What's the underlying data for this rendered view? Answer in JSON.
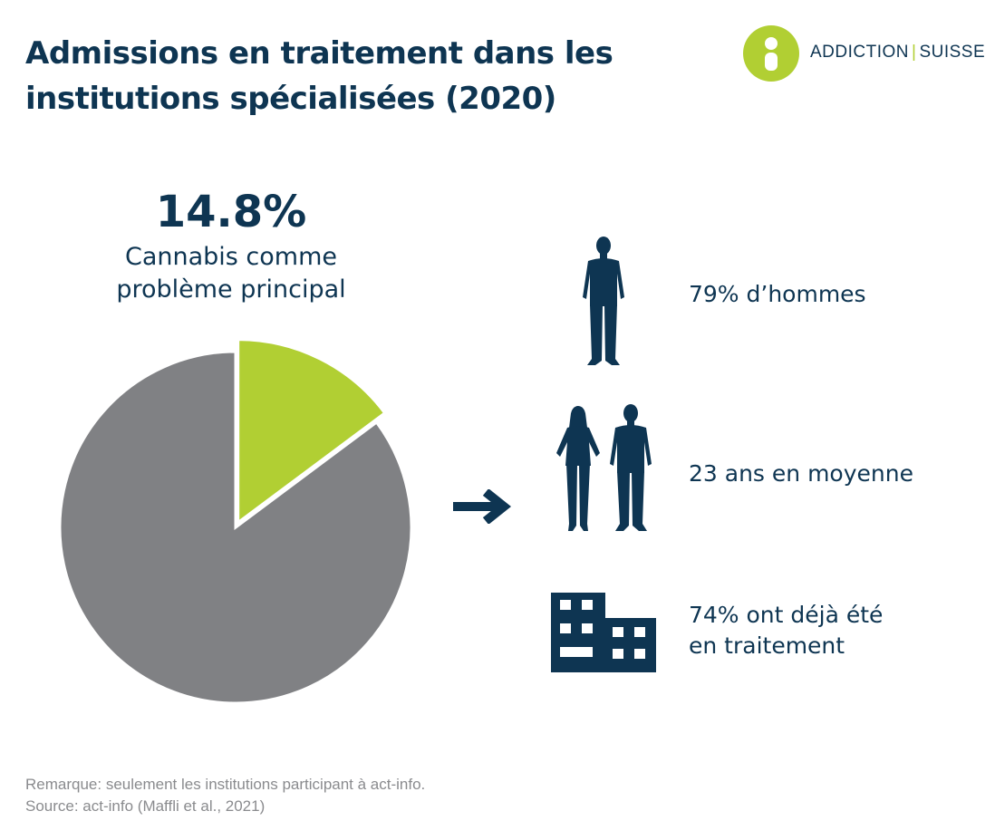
{
  "title": {
    "line1": "Admissions en traitement dans les",
    "line2": "institutions spécialisées (2020)"
  },
  "logo": {
    "word1": "ADDICTION",
    "separator": "|",
    "word2": "SUISSE",
    "icon": "addiction-suisse-logo-icon"
  },
  "highlight": {
    "value": "14.8%",
    "caption_line1": "Cannabis comme",
    "caption_line2": "problème principal"
  },
  "stats": [
    {
      "icon": "man-silhouette-icon",
      "line1": "79% d’hommes",
      "line2": ""
    },
    {
      "icon": "woman-and-man-silhouette-icon",
      "line1": "23 ans en moyenne",
      "line2": ""
    },
    {
      "icon": "building-icon",
      "line1": "74% ont déjà été",
      "line2": "en traitement"
    }
  ],
  "footer": {
    "note": "Remarque: seulement les institutions participant à act-info.",
    "source": "Source: act-info (Maffli et al., 2021)"
  },
  "colors": {
    "navy": "#0e3552",
    "accent_green": "#b1cf33",
    "pie_gray": "#808184",
    "footer_gray": "#8a8b8e"
  },
  "chart_data": {
    "type": "pie",
    "title": "",
    "slices": [
      {
        "label": "Cannabis comme problème principal",
        "value": 14.8,
        "color": "#b1cf33",
        "exploded": true
      },
      {
        "label": "",
        "value": 85.2,
        "color": "#808184",
        "exploded": false
      }
    ],
    "start_angle_deg": 0,
    "direction": "clockwise",
    "legend": "none"
  }
}
